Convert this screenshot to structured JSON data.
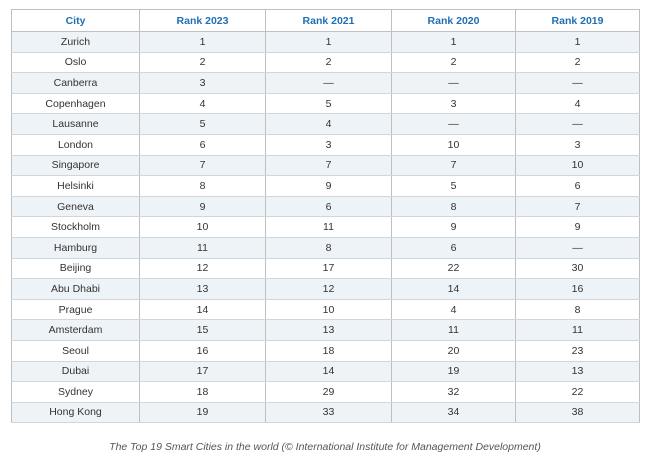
{
  "table": {
    "headers": [
      "City",
      "Rank 2023",
      "Rank 2021",
      "Rank 2020",
      "Rank 2019"
    ],
    "rows": [
      [
        "Zurich",
        "1",
        "1",
        "1",
        "1"
      ],
      [
        "Oslo",
        "2",
        "2",
        "2",
        "2"
      ],
      [
        "Canberra",
        "3",
        "—",
        "—",
        "—"
      ],
      [
        "Copenhagen",
        "4",
        "5",
        "3",
        "4"
      ],
      [
        "Lausanne",
        "5",
        "4",
        "—",
        "—"
      ],
      [
        "London",
        "6",
        "3",
        "10",
        "3"
      ],
      [
        "Singapore",
        "7",
        "7",
        "7",
        "10"
      ],
      [
        "Helsinki",
        "8",
        "9",
        "5",
        "6"
      ],
      [
        "Geneva",
        "9",
        "6",
        "8",
        "7"
      ],
      [
        "Stockholm",
        "10",
        "11",
        "9",
        "9"
      ],
      [
        "Hamburg",
        "11",
        "8",
        "6",
        "—"
      ],
      [
        "Beijing",
        "12",
        "17",
        "22",
        "30"
      ],
      [
        "Abu Dhabi",
        "13",
        "12",
        "14",
        "16"
      ],
      [
        "Prague",
        "14",
        "10",
        "4",
        "8"
      ],
      [
        "Amsterdam",
        "15",
        "13",
        "11",
        "11"
      ],
      [
        "Seoul",
        "16",
        "18",
        "20",
        "23"
      ],
      [
        "Dubai",
        "17",
        "14",
        "19",
        "13"
      ],
      [
        "Sydney",
        "18",
        "29",
        "32",
        "22"
      ],
      [
        "Hong Kong",
        "19",
        "33",
        "34",
        "38"
      ]
    ]
  },
  "caption": "The Top 19 Smart Cities in the world (© International Institute for Management Development)",
  "colors": {
    "header_text": "#1f6fb5",
    "stripe": "#eef3f8",
    "border": "#bfbfbf"
  }
}
